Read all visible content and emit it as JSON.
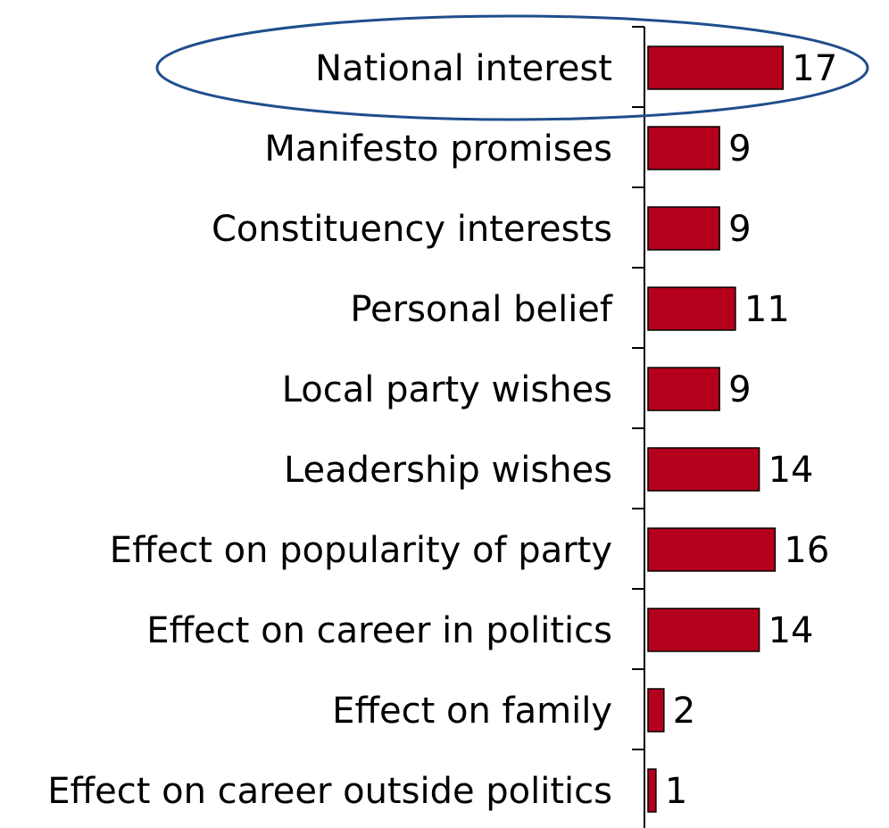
{
  "chart_data": {
    "type": "bar",
    "orientation": "horizontal",
    "categories": [
      "National interest",
      "Manifesto promises",
      "Constituency interests",
      "Personal belief",
      "Local party wishes",
      "Leadership wishes",
      "Effect on popularity of party",
      "Effect on career in politics",
      "Effect on family",
      "Effect on career outside politics"
    ],
    "values": [
      17,
      9,
      9,
      11,
      9,
      14,
      16,
      14,
      2,
      1
    ],
    "value_labels": [
      "17",
      "9",
      "9",
      "11",
      "9",
      "14",
      "16",
      "14",
      "2",
      "1"
    ],
    "bar_color": "#b5001d",
    "bar_edge_color": "#000000",
    "highlight": {
      "category": "National interest",
      "shape": "ellipse",
      "color": "#1f4e8c"
    },
    "grid": false
  }
}
